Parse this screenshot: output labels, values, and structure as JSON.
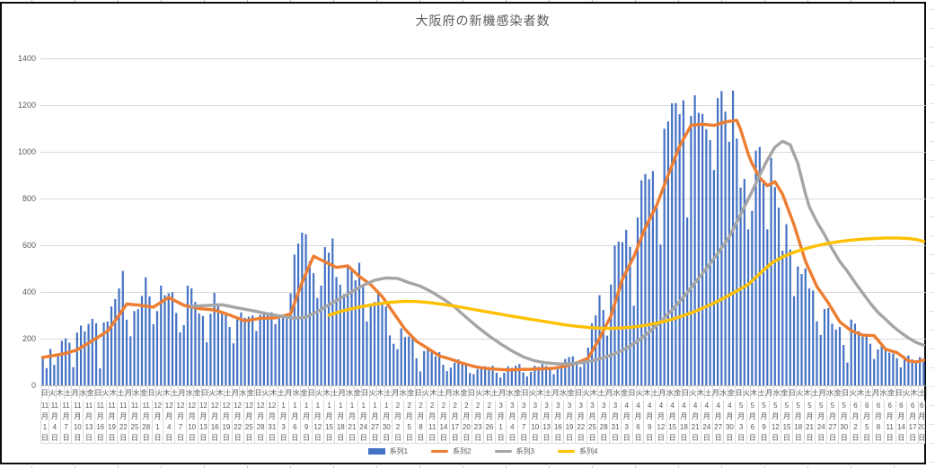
{
  "chart_data": {
    "type": "combo",
    "title": "大阪府の新機感染者数",
    "n_categories": 232,
    "ylim": [
      0,
      1400
    ],
    "y_ticks": [
      0,
      200,
      400,
      600,
      800,
      1000,
      1200,
      1400
    ],
    "grid": "horizontal",
    "weekday_cycle": [
      "日",
      "火",
      "木",
      "土",
      "月",
      "水",
      "金"
    ],
    "weekday_label_every": 2,
    "date_label_every": 3,
    "month_char": "月",
    "day_char": "日",
    "x_date_ticks": [
      [
        11,
        1
      ],
      [
        11,
        4
      ],
      [
        11,
        7
      ],
      [
        11,
        10
      ],
      [
        11,
        13
      ],
      [
        11,
        16
      ],
      [
        11,
        19
      ],
      [
        11,
        22
      ],
      [
        11,
        25
      ],
      [
        11,
        28
      ],
      [
        12,
        1
      ],
      [
        12,
        4
      ],
      [
        12,
        7
      ],
      [
        12,
        10
      ],
      [
        12,
        13
      ],
      [
        12,
        16
      ],
      [
        12,
        19
      ],
      [
        12,
        22
      ],
      [
        12,
        25
      ],
      [
        12,
        28
      ],
      [
        12,
        31
      ],
      [
        1,
        3
      ],
      [
        1,
        6
      ],
      [
        1,
        9
      ],
      [
        1,
        12
      ],
      [
        1,
        15
      ],
      [
        1,
        18
      ],
      [
        1,
        21
      ],
      [
        1,
        24
      ],
      [
        1,
        27
      ],
      [
        1,
        30
      ],
      [
        2,
        2
      ],
      [
        2,
        5
      ],
      [
        2,
        8
      ],
      [
        2,
        11
      ],
      [
        2,
        14
      ],
      [
        2,
        17
      ],
      [
        2,
        20
      ],
      [
        2,
        23
      ],
      [
        2,
        26
      ],
      [
        3,
        1
      ],
      [
        3,
        4
      ],
      [
        3,
        7
      ],
      [
        3,
        10
      ],
      [
        3,
        13
      ],
      [
        3,
        16
      ],
      [
        3,
        19
      ],
      [
        3,
        22
      ],
      [
        3,
        25
      ],
      [
        3,
        28
      ],
      [
        3,
        31
      ],
      [
        4,
        3
      ],
      [
        4,
        6
      ],
      [
        4,
        9
      ],
      [
        4,
        12
      ],
      [
        4,
        15
      ],
      [
        4,
        18
      ],
      [
        4,
        21
      ],
      [
        4,
        24
      ],
      [
        4,
        27
      ],
      [
        4,
        30
      ],
      [
        5,
        3
      ],
      [
        5,
        6
      ],
      [
        5,
        9
      ],
      [
        5,
        12
      ],
      [
        5,
        15
      ],
      [
        5,
        18
      ],
      [
        5,
        21
      ],
      [
        5,
        24
      ],
      [
        5,
        27
      ],
      [
        5,
        30
      ],
      [
        6,
        2
      ],
      [
        6,
        5
      ],
      [
        6,
        8
      ],
      [
        6,
        11
      ],
      [
        6,
        14
      ],
      [
        6,
        17
      ],
      [
        6,
        20
      ]
    ],
    "series": [
      {
        "name": "系列1",
        "type": "bar",
        "color": "#4472C4",
        "values": [
          123,
          74,
          156,
          88,
          125,
          191,
          201,
          183,
          78,
          226,
          256,
          231,
          263,
          285,
          266,
          73,
          269,
          273,
          338,
          370,
          415,
          490,
          281,
          210,
          318,
          326,
          383,
          463,
          381,
          262,
          318,
          427,
          386,
          394,
          399,
          310,
          227,
          258,
          427,
          415,
          357,
          308,
          297,
          185,
          306,
          396,
          351,
          309,
          311,
          250,
          180,
          283,
          312,
          289,
          294,
          299,
          233,
          302,
          307,
          308,
          313,
          262,
          286,
          294,
          286,
          394,
          560,
          607,
          654,
          647,
          532,
          480,
          374,
          427,
          592,
          568,
          629,
          464,
          431,
          391,
          506,
          501,
          450,
          525,
          421,
          273,
          343,
          357,
          397,
          346,
          338,
          214,
          178,
          155,
          244,
          207,
          209,
          212,
          116,
          60,
          147,
          152,
          141,
          124,
          142,
          88,
          61,
          76,
          97,
          111,
          91,
          92,
          53,
          48,
          70,
          72,
          82,
          71,
          84,
          54,
          34,
          54,
          81,
          75,
          84,
          91,
          56,
          38,
          58,
          84,
          79,
          91,
          83,
          71,
          48,
          73,
          94,
          113,
          121,
          124,
          100,
          79,
          113,
          162,
          266,
          300,
          386,
          323,
          213,
          432,
          599,
          616,
          613,
          666,
          593,
          341,
          719,
          878,
          905,
          883,
          918,
          760,
          603,
          1099,
          1130,
          1208,
          1209,
          1161,
          1220,
          719,
          1153,
          1242,
          1167,
          1162,
          1097,
          1050,
          922,
          1230,
          1260,
          1172,
          1043,
          1262,
          1057,
          847,
          884,
          668,
          747,
          1005,
          1021,
          874,
          668,
          974,
          849,
          761,
          576,
          690,
          582,
          382,
          509,
          477,
          501,
          415,
          406,
          274,
          216,
          327,
          331,
          264,
          239,
          250,
          173,
          98,
          282,
          264,
          232,
          209,
          217,
          178,
          113,
          154,
          168,
          153,
          140,
          136,
          116,
          77,
          124,
          128,
          111,
          98,
          121,
          100
        ]
      },
      {
        "name": "系列2",
        "type": "line",
        "color": "#ED7D31",
        "points": [
          [
            0,
            120
          ],
          [
            3,
            128
          ],
          [
            6,
            137
          ],
          [
            9,
            152
          ],
          [
            13,
            191
          ],
          [
            17,
            232
          ],
          [
            20,
            300
          ],
          [
            22,
            348
          ],
          [
            25,
            344
          ],
          [
            29,
            335
          ],
          [
            33,
            376
          ],
          [
            37,
            343
          ],
          [
            41,
            329
          ],
          [
            45,
            323
          ],
          [
            49,
            301
          ],
          [
            53,
            276
          ],
          [
            57,
            287
          ],
          [
            61,
            289
          ],
          [
            65,
            306
          ],
          [
            68,
            440
          ],
          [
            71,
            553
          ],
          [
            74,
            529
          ],
          [
            77,
            505
          ],
          [
            80,
            512
          ],
          [
            83,
            467
          ],
          [
            86,
            431
          ],
          [
            89,
            380
          ],
          [
            92,
            310
          ],
          [
            95,
            240
          ],
          [
            98,
            189
          ],
          [
            101,
            158
          ],
          [
            104,
            126
          ],
          [
            107,
            112
          ],
          [
            110,
            95
          ],
          [
            113,
            81
          ],
          [
            116,
            73
          ],
          [
            119,
            69
          ],
          [
            122,
            66
          ],
          [
            125,
            68
          ],
          [
            128,
            69
          ],
          [
            131,
            71
          ],
          [
            134,
            73
          ],
          [
            137,
            82
          ],
          [
            140,
            96
          ],
          [
            143,
            116
          ],
          [
            146,
            201
          ],
          [
            149,
            297
          ],
          [
            152,
            455
          ],
          [
            155,
            551
          ],
          [
            158,
            674
          ],
          [
            161,
            772
          ],
          [
            164,
            900
          ],
          [
            167,
            1024
          ],
          [
            170,
            1114
          ],
          [
            173,
            1118
          ],
          [
            176,
            1113
          ],
          [
            179,
            1128
          ],
          [
            182,
            1135
          ],
          [
            183,
            1095
          ],
          [
            185,
            990
          ],
          [
            186,
            950
          ],
          [
            188,
            890
          ],
          [
            190,
            855
          ],
          [
            192,
            872
          ],
          [
            194,
            818
          ],
          [
            197,
            688
          ],
          [
            200,
            531
          ],
          [
            203,
            423
          ],
          [
            206,
            353
          ],
          [
            209,
            272
          ],
          [
            212,
            234
          ],
          [
            215,
            215
          ],
          [
            218,
            213
          ],
          [
            221,
            155
          ],
          [
            224,
            140
          ],
          [
            227,
            105
          ],
          [
            229,
            100
          ],
          [
            231,
            108
          ]
        ]
      },
      {
        "name": "系列3",
        "type": "line",
        "color": "#A5A5A5",
        "points": [
          [
            39,
            338
          ],
          [
            43,
            342
          ],
          [
            47,
            345
          ],
          [
            51,
            332
          ],
          [
            55,
            320
          ],
          [
            59,
            306
          ],
          [
            63,
            295
          ],
          [
            66,
            287
          ],
          [
            69,
            292
          ],
          [
            72,
            315
          ],
          [
            75,
            345
          ],
          [
            78,
            372
          ],
          [
            81,
            400
          ],
          [
            84,
            428
          ],
          [
            87,
            450
          ],
          [
            90,
            460
          ],
          [
            93,
            458
          ],
          [
            96,
            440
          ],
          [
            99,
            425
          ],
          [
            102,
            400
          ],
          [
            105,
            370
          ],
          [
            108,
            335
          ],
          [
            111,
            292
          ],
          [
            114,
            250
          ],
          [
            117,
            212
          ],
          [
            120,
            178
          ],
          [
            123,
            148
          ],
          [
            126,
            122
          ],
          [
            129,
            105
          ],
          [
            132,
            96
          ],
          [
            135,
            92
          ],
          [
            138,
            92
          ],
          [
            141,
            97
          ],
          [
            144,
            105
          ],
          [
            147,
            118
          ],
          [
            150,
            135
          ],
          [
            153,
            158
          ],
          [
            156,
            190
          ],
          [
            159,
            228
          ],
          [
            162,
            272
          ],
          [
            165,
            322
          ],
          [
            168,
            378
          ],
          [
            171,
            438
          ],
          [
            174,
            500
          ],
          [
            177,
            565
          ],
          [
            180,
            635
          ],
          [
            182,
            700
          ],
          [
            184,
            765
          ],
          [
            186,
            830
          ],
          [
            188,
            900
          ],
          [
            190,
            965
          ],
          [
            192,
            1020
          ],
          [
            194,
            1045
          ],
          [
            196,
            1030
          ],
          [
            198,
            950
          ],
          [
            200,
            820
          ],
          [
            201,
            765
          ],
          [
            203,
            700
          ],
          [
            205,
            645
          ],
          [
            207,
            585
          ],
          [
            209,
            530
          ],
          [
            211,
            488
          ],
          [
            213,
            440
          ],
          [
            215,
            396
          ],
          [
            217,
            352
          ],
          [
            219,
            313
          ],
          [
            221,
            283
          ],
          [
            223,
            252
          ],
          [
            225,
            226
          ],
          [
            227,
            203
          ],
          [
            229,
            184
          ],
          [
            231,
            172
          ]
        ]
      },
      {
        "name": "系列4",
        "type": "line",
        "color": "#FFC000",
        "points": [
          [
            75,
            300
          ],
          [
            78,
            316
          ],
          [
            81,
            328
          ],
          [
            84,
            338
          ],
          [
            87,
            347
          ],
          [
            90,
            354
          ],
          [
            93,
            358
          ],
          [
            95,
            360
          ],
          [
            98,
            359
          ],
          [
            101,
            355
          ],
          [
            104,
            349
          ],
          [
            107,
            342
          ],
          [
            110,
            334
          ],
          [
            113,
            325
          ],
          [
            116,
            316
          ],
          [
            119,
            308
          ],
          [
            122,
            299
          ],
          [
            125,
            291
          ],
          [
            128,
            283
          ],
          [
            131,
            275
          ],
          [
            134,
            267
          ],
          [
            137,
            259
          ],
          [
            140,
            253
          ],
          [
            143,
            248
          ],
          [
            146,
            245
          ],
          [
            149,
            244
          ],
          [
            152,
            246
          ],
          [
            155,
            250
          ],
          [
            158,
            257
          ],
          [
            161,
            266
          ],
          [
            164,
            278
          ],
          [
            167,
            293
          ],
          [
            170,
            310
          ],
          [
            173,
            330
          ],
          [
            176,
            352
          ],
          [
            179,
            377
          ],
          [
            182,
            404
          ],
          [
            185,
            432
          ],
          [
            188,
            478
          ],
          [
            191,
            522
          ],
          [
            194,
            550
          ],
          [
            197,
            570
          ],
          [
            200,
            585
          ],
          [
            203,
            598
          ],
          [
            206,
            608
          ],
          [
            209,
            616
          ],
          [
            212,
            622
          ],
          [
            215,
            626
          ],
          [
            218,
            629
          ],
          [
            221,
            631
          ],
          [
            224,
            631
          ],
          [
            227,
            629
          ],
          [
            229,
            625
          ],
          [
            231,
            616
          ]
        ]
      }
    ],
    "legend": {
      "position": "bottom",
      "labels": [
        "系列1",
        "系列2",
        "系列3",
        "系列4"
      ]
    },
    "frame_color": "#0d0d0d",
    "gridline_color": "#d9d9d9",
    "axis_line_color": "#bfbfbf",
    "label_color": "#595959"
  }
}
